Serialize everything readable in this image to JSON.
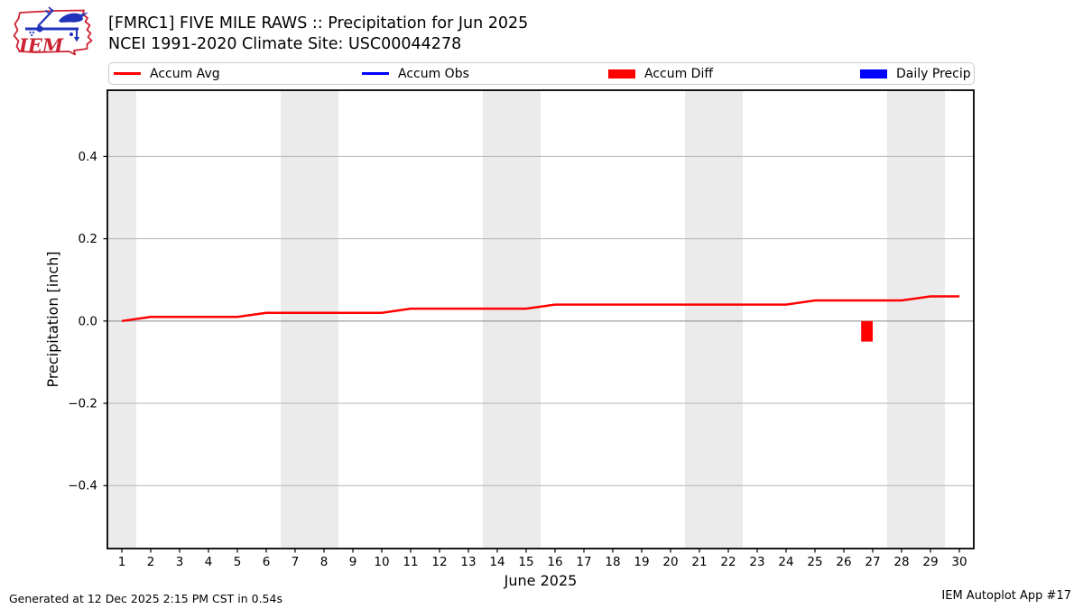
{
  "header": {
    "title": "[FMRC1] FIVE MILE RAWS :: Precipitation for Jun 2025",
    "subtitle": "NCEI 1991-2020 Climate Site: USC00044278",
    "logo_text": "IEM"
  },
  "legend": {
    "items": [
      {
        "label": "Accum Avg",
        "swatch": "line",
        "color": "#ff0000"
      },
      {
        "label": "Accum Obs",
        "swatch": "line",
        "color": "#0000ff"
      },
      {
        "label": "Accum Diff",
        "swatch": "rect",
        "color": "#ff0000"
      },
      {
        "label": "Daily Precip",
        "swatch": "rect",
        "color": "#0000ff"
      }
    ]
  },
  "footer": {
    "left": "Generated at 12 Dec 2025 2:15 PM CST in 0.54s",
    "right": "IEM Autoplot App #17"
  },
  "logo_colors": {
    "red": "#cc2233",
    "blue": "#2233bb"
  },
  "chart_data": {
    "type": "line",
    "title": "[FMRC1] FIVE MILE RAWS :: Precipitation for Jun 2025",
    "subtitle": "NCEI 1991-2020 Climate Site: USC00044278",
    "xlabel": "June 2025",
    "ylabel": "Precipitation [inch]",
    "xlim": [
      0.5,
      30.5
    ],
    "ylim": [
      -0.553,
      0.561
    ],
    "grid": true,
    "legend_position": "top",
    "band_color": "#ebebeb",
    "grid_color": "#b4b4b4",
    "zero_line_color": "#888888",
    "frame_color": "#000000",
    "weekend_bands": [
      [
        0.5,
        1.5
      ],
      [
        6.5,
        8.5
      ],
      [
        13.5,
        15.5
      ],
      [
        20.5,
        22.5
      ],
      [
        27.5,
        29.5
      ]
    ],
    "yticks": [
      {
        "v": 0.4,
        "label": "0.4"
      },
      {
        "v": 0.2,
        "label": "0.2"
      },
      {
        "v": 0.0,
        "label": "0.0"
      },
      {
        "v": -0.2,
        "label": "−0.2"
      },
      {
        "v": -0.4,
        "label": "−0.4"
      }
    ],
    "xtick_labels": [
      "1",
      "2",
      "3",
      "4",
      "5",
      "6",
      "7",
      "8",
      "9",
      "10",
      "11",
      "12",
      "13",
      "14",
      "15",
      "16",
      "17",
      "18",
      "19",
      "20",
      "21",
      "22",
      "23",
      "24",
      "25",
      "26",
      "27",
      "28",
      "29",
      "30"
    ],
    "series": [
      {
        "name": "Accum Avg",
        "type": "line",
        "color": "#ff0000",
        "points": [
          [
            1,
            0.0
          ],
          [
            2,
            0.01
          ],
          [
            5,
            0.01
          ],
          [
            6,
            0.02
          ],
          [
            10,
            0.02
          ],
          [
            11,
            0.03
          ],
          [
            15,
            0.03
          ],
          [
            16,
            0.04
          ],
          [
            24,
            0.04
          ],
          [
            25,
            0.05
          ],
          [
            28,
            0.05
          ],
          [
            29,
            0.06
          ],
          [
            30,
            0.06
          ]
        ]
      },
      {
        "name": "Accum Obs",
        "type": "line",
        "color": "#0000ff",
        "points": []
      },
      {
        "name": "Accum Diff",
        "type": "bar",
        "color": "#ff0000",
        "bars": [
          {
            "x": 26.8,
            "w": 0.4,
            "y": -0.05
          }
        ]
      },
      {
        "name": "Daily Precip",
        "type": "bar",
        "color": "#0000ff",
        "bars": []
      }
    ]
  }
}
